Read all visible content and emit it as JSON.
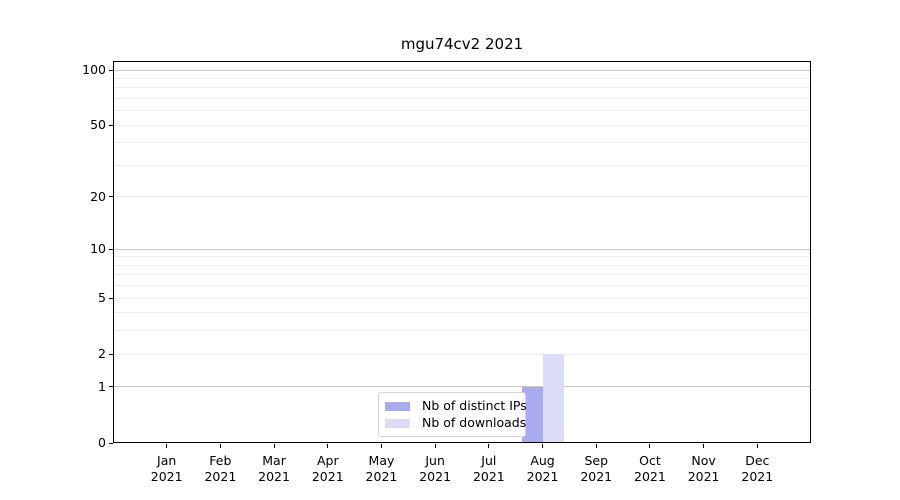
{
  "title": "mgu74cv2 2021",
  "colors": {
    "distinct_ips": "#aaaaee",
    "downloads": "#dcdcf8",
    "grid_minor": "#ececec",
    "grid_major": "#c8c8c8",
    "axis": "#000000",
    "legend_border": "#d5d5d5"
  },
  "legend": {
    "items": [
      {
        "label": "Nb of distinct IPs",
        "color": "#aaaaee"
      },
      {
        "label": "Nb of downloads",
        "color": "#dcdcf8"
      }
    ]
  },
  "chart_data": {
    "type": "bar",
    "title": "mgu74cv2 2021",
    "y_scale": "log10(1+x)",
    "categories": [
      "Jan 2021",
      "Feb 2021",
      "Mar 2021",
      "Apr 2021",
      "May 2021",
      "Jun 2021",
      "Jul 2021",
      "Aug 2021",
      "Sep 2021",
      "Oct 2021",
      "Nov 2021",
      "Dec 2021"
    ],
    "x_tick_line1": [
      "Jan",
      "Feb",
      "Mar",
      "Apr",
      "May",
      "Jun",
      "Jul",
      "Aug",
      "Sep",
      "Oct",
      "Nov",
      "Dec"
    ],
    "x_tick_line2": [
      "2021",
      "2021",
      "2021",
      "2021",
      "2021",
      "2021",
      "2021",
      "2021",
      "2021",
      "2021",
      "2021",
      "2021"
    ],
    "series": [
      {
        "name": "Nb of distinct IPs",
        "color": "#aaaaee",
        "values": [
          0,
          0,
          0,
          0,
          0,
          0,
          0,
          1,
          0,
          0,
          0,
          0
        ]
      },
      {
        "name": "Nb of downloads",
        "color": "#dcdcf8",
        "values": [
          0,
          0,
          0,
          0,
          0,
          0,
          0,
          2,
          0,
          0,
          0,
          0
        ]
      }
    ],
    "y_ticks": [
      0,
      1,
      2,
      5,
      10,
      20,
      50,
      100
    ],
    "grid_major_values": [
      1,
      10,
      100
    ],
    "grid_minor_values": [
      2,
      3,
      4,
      5,
      6,
      7,
      8,
      9,
      20,
      30,
      40,
      50,
      60,
      70,
      80,
      90
    ],
    "ylim": [
      0,
      112
    ],
    "xlabel": "",
    "ylabel": "",
    "legend_position": "bottom-center-inside",
    "grid": "horizontal"
  }
}
